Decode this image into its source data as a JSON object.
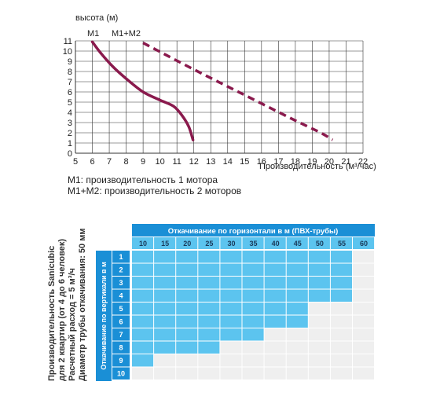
{
  "chart_data": [
    {
      "type": "line",
      "ylabel": "высота (м)",
      "xlabel": "Производительность (м³/час)",
      "xlim": [
        5,
        22
      ],
      "ylim": [
        0,
        11
      ],
      "x_ticks": [
        "5",
        "6",
        "7",
        "8",
        "9",
        "10",
        "11",
        "12",
        "13",
        "14",
        "15",
        "16",
        "17",
        "18",
        "19",
        "20",
        "21",
        "22"
      ],
      "y_ticks": [
        "0",
        "1",
        "2",
        "3",
        "4",
        "5",
        "6",
        "7",
        "8",
        "9",
        "10",
        "11"
      ],
      "grid": true,
      "series": [
        {
          "name": "M1",
          "style": "solid",
          "color": "#8a1a4d",
          "x": [
            6.0,
            6.5,
            7.2,
            8.0,
            9.0,
            10.0,
            10.8,
            11.3,
            11.7,
            11.95
          ],
          "y": [
            10.9,
            9.8,
            8.5,
            7.3,
            6.0,
            5.2,
            4.6,
            3.7,
            2.6,
            1.3
          ]
        },
        {
          "name": "M1+M2",
          "style": "dashed",
          "color": "#8a1a4d",
          "x": [
            9.0,
            12.0,
            15.0,
            18.0,
            19.5,
            20.2
          ],
          "y": [
            10.8,
            8.2,
            5.7,
            3.2,
            2.0,
            1.3
          ]
        }
      ]
    },
    {
      "type": "table",
      "title": "Откачивание по горизонтали  в м  (ПВХ-трубы)",
      "column_headers": [
        "10",
        "15",
        "20",
        "25",
        "30",
        "35",
        "40",
        "45",
        "50",
        "55",
        "60"
      ],
      "row_header_title": "Откачивание по вертикали в м",
      "row_headers": [
        "1",
        "2",
        "3",
        "4",
        "5",
        "6",
        "7",
        "8",
        "9",
        "10"
      ],
      "filled_columns_per_row": [
        10,
        10,
        10,
        10,
        8,
        8,
        6,
        4,
        1,
        0
      ],
      "colors": {
        "header": "#1a8fd6",
        "filled": "#5cc4ef",
        "empty": "#efefef"
      }
    }
  ],
  "notes": {
    "m1": "M1: производительность 1 мотора",
    "m1m2": "M1+M2: производительность 2 моторов"
  },
  "side_text": {
    "line1": "Производительность Sanicubic",
    "line2": "для 2 квартир (от 4 до 6 человек)",
    "line3": "Расчетный расход = 5 м³/ч",
    "line4": "Диаметр трубы откачивания: 50 мм"
  }
}
